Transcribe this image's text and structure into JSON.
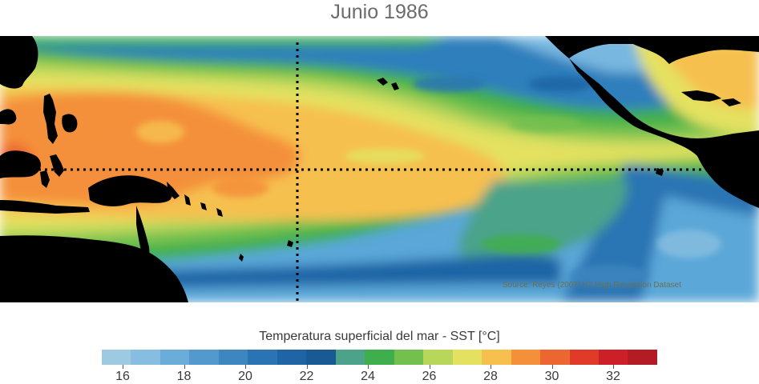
{
  "title": "Junio 1986",
  "credit": "Source: Reyes (2007) V2 High Resolution Dataset",
  "colorbar": {
    "label": "Temperatura superficial del mar - SST  [°C]",
    "colors": [
      "#9ecae1",
      "#86bde0",
      "#6cacd8",
      "#5499cd",
      "#3d86c0",
      "#2a74b3",
      "#1f65a6",
      "#1a5a92",
      "#4ca38a",
      "#3fae4d",
      "#73c04f",
      "#b7d65a",
      "#e4e160",
      "#f6c04f",
      "#f4903a",
      "#ec6632",
      "#e03a28",
      "#cc1f27",
      "#b31b25"
    ],
    "tick_values": [
      16,
      18,
      20,
      22,
      24,
      26,
      28,
      30,
      32
    ]
  }
}
